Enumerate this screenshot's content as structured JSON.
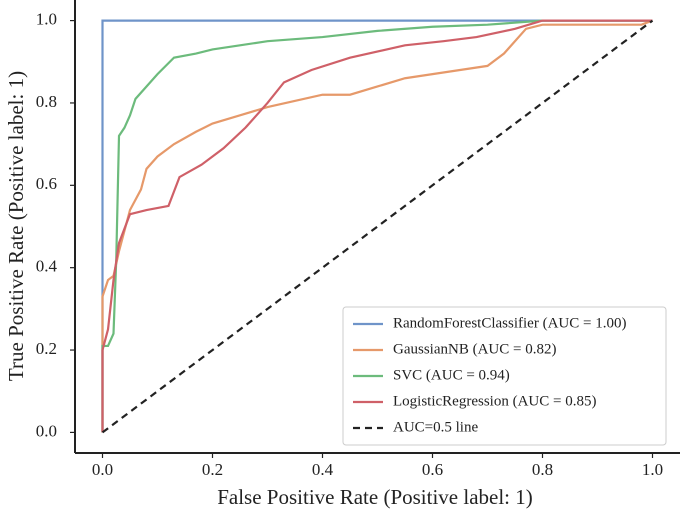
{
  "chart_data": {
    "type": "line",
    "xlabel": "False Positive Rate (Positive label: 1)",
    "ylabel": "True Positive Rate (Positive label: 1)",
    "xlim": [
      -0.05,
      1.05
    ],
    "ylim": [
      -0.05,
      1.05
    ],
    "xticks": [
      {
        "value": 0,
        "label": "0.0"
      },
      0.2,
      0.4,
      0.6,
      0.8,
      {
        "value": 1,
        "label": "1.0"
      }
    ],
    "yticks": [
      {
        "value": 0,
        "label": "0.0"
      },
      0.2,
      0.4,
      0.6,
      0.8,
      {
        "value": 1,
        "label": "1.0"
      }
    ],
    "legend": "lower right",
    "series": [
      {
        "name": "RandomForestClassifier (AUC = 1.00)",
        "color": "#6f94c9",
        "x": [
          0,
          0,
          1
        ],
        "values": [
          0,
          1,
          1
        ]
      },
      {
        "name": "GaussianNB (AUC = 0.82)",
        "color": "#e6996a",
        "x": [
          0,
          0,
          0.01,
          0.02,
          0.03,
          0.05,
          0.07,
          0.08,
          0.1,
          0.13,
          0.17,
          0.2,
          0.25,
          0.3,
          0.4,
          0.45,
          0.5,
          0.55,
          0.6,
          0.65,
          0.7,
          0.73,
          0.77,
          0.8,
          0.98,
          1
        ],
        "values": [
          0,
          0.33,
          0.37,
          0.38,
          0.44,
          0.54,
          0.59,
          0.64,
          0.67,
          0.7,
          0.73,
          0.75,
          0.77,
          0.79,
          0.82,
          0.82,
          0.84,
          0.86,
          0.87,
          0.88,
          0.89,
          0.92,
          0.98,
          0.99,
          0.99,
          1
        ]
      },
      {
        "name": "SVC (AUC = 0.94)",
        "color": "#6cbb7c",
        "x": [
          0,
          0,
          0.01,
          0.02,
          0.025,
          0.03,
          0.04,
          0.05,
          0.06,
          0.08,
          0.1,
          0.13,
          0.17,
          0.2,
          0.25,
          0.3,
          0.4,
          0.5,
          0.6,
          0.7,
          0.8,
          1
        ],
        "values": [
          0,
          0.21,
          0.21,
          0.24,
          0.42,
          0.72,
          0.74,
          0.77,
          0.81,
          0.84,
          0.87,
          0.91,
          0.92,
          0.93,
          0.94,
          0.95,
          0.96,
          0.975,
          0.985,
          0.99,
          1,
          1
        ]
      },
      {
        "name": "LogisticRegression (AUC = 0.85)",
        "color": "#cf6068",
        "x": [
          0,
          0,
          0.01,
          0.02,
          0.03,
          0.05,
          0.08,
          0.12,
          0.14,
          0.18,
          0.22,
          0.26,
          0.3,
          0.33,
          0.38,
          0.45,
          0.55,
          0.62,
          0.68,
          0.75,
          0.8,
          1
        ],
        "values": [
          0,
          0.2,
          0.25,
          0.37,
          0.46,
          0.53,
          0.54,
          0.55,
          0.62,
          0.65,
          0.69,
          0.74,
          0.8,
          0.85,
          0.88,
          0.91,
          0.94,
          0.95,
          0.96,
          0.98,
          1,
          1
        ]
      },
      {
        "name": "AUC=0.5 line",
        "color": "#222222",
        "dash": true,
        "x": [
          0,
          1
        ],
        "values": [
          0,
          1
        ]
      }
    ]
  }
}
